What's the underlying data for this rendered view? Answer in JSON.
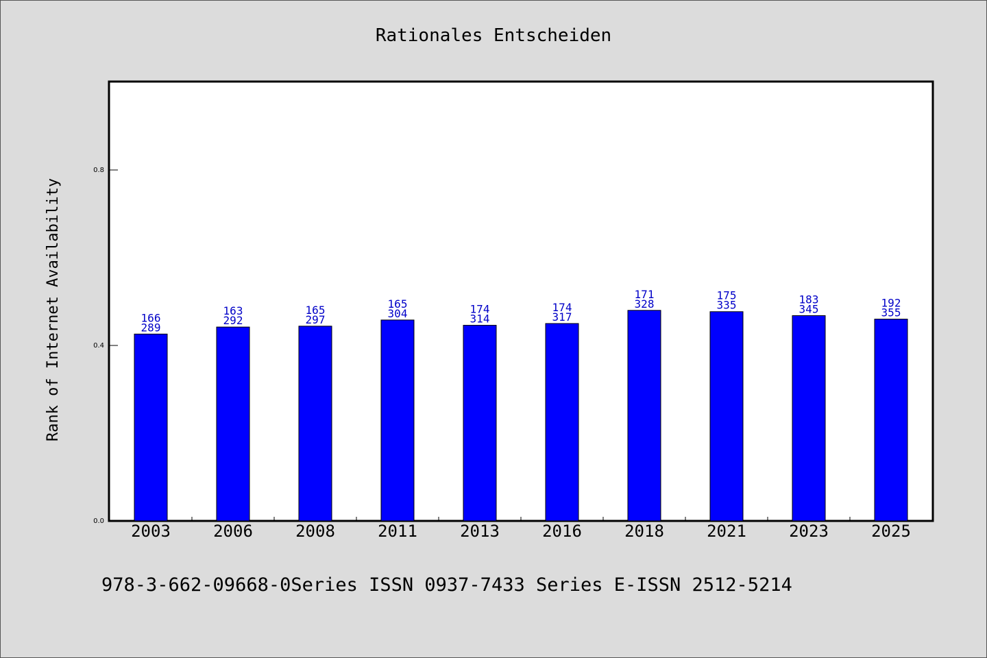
{
  "chart_data": {
    "type": "bar",
    "title": "Rationales Entscheiden",
    "ylabel": "Rank of Internet Availability",
    "xlabel": "",
    "categories": [
      "2003",
      "2006",
      "2008",
      "2011",
      "2013",
      "2016",
      "2018",
      "2021",
      "2023",
      "2025"
    ],
    "values": [
      0.426,
      0.442,
      0.444,
      0.458,
      0.446,
      0.45,
      0.48,
      0.477,
      0.468,
      0.46
    ],
    "data_labels": [
      [
        "166",
        "289"
      ],
      [
        "163",
        "292"
      ],
      [
        "165",
        "297"
      ],
      [
        "165",
        "304"
      ],
      [
        "174",
        "314"
      ],
      [
        "174",
        "317"
      ],
      [
        "171",
        "328"
      ],
      [
        "175",
        "335"
      ],
      [
        "183",
        "345"
      ],
      [
        "192",
        "355"
      ]
    ],
    "yticks": [
      "0.0",
      "0.4",
      "0.8"
    ],
    "ytick_values": [
      0.0,
      0.4,
      0.8
    ],
    "ylim": [
      0,
      1.0
    ],
    "bar_color": "#0000ff",
    "label_color": "#0000c8",
    "grid": false
  },
  "footer": "978-3-662-09668-0Series ISSN 0937-7433 Series E-ISSN 2512-5214"
}
